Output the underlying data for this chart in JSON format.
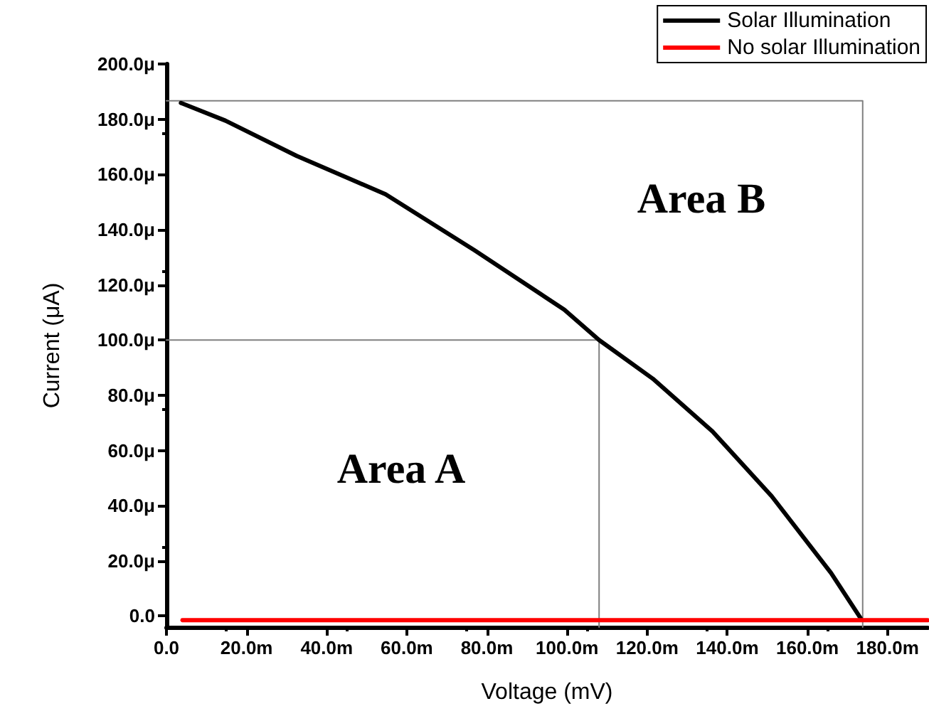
{
  "chart_data": {
    "type": "line",
    "xlabel": "Voltage (mV)",
    "ylabel": "Current (μA)",
    "xlim": [
      0,
      190
    ],
    "ylim": [
      -4,
      200
    ],
    "xticks": [
      {
        "value": 0,
        "label": "0.0"
      },
      {
        "value": 20,
        "label": "20.0m"
      },
      {
        "value": 40,
        "label": "40.0m"
      },
      {
        "value": 60,
        "label": "60.0m"
      },
      {
        "value": 80,
        "label": "80.0m"
      },
      {
        "value": 100,
        "label": "100.0m"
      },
      {
        "value": 120,
        "label": "120.0m"
      },
      {
        "value": 140,
        "label": "140.0m"
      },
      {
        "value": 160,
        "label": "160.0m"
      },
      {
        "value": 180,
        "label": "180.0m"
      }
    ],
    "yticks": [
      {
        "value": 0,
        "label": "0.0"
      },
      {
        "value": 20,
        "label": "20.0μ"
      },
      {
        "value": 40,
        "label": "40.0μ"
      },
      {
        "value": 60,
        "label": "60.0μ"
      },
      {
        "value": 80,
        "label": "80.0μ"
      },
      {
        "value": 100,
        "label": "100.0μ"
      },
      {
        "value": 120,
        "label": "120.0μ"
      },
      {
        "value": 140,
        "label": "140.0μ"
      },
      {
        "value": 160,
        "label": "160.0μ"
      },
      {
        "value": 180,
        "label": "180.0μ"
      },
      {
        "value": 200,
        "label": "200.0μ"
      }
    ],
    "series": [
      {
        "name": "Solar Illumination",
        "color": "#000000",
        "x": [
          3.6,
          14.7,
          32.5,
          54.7,
          76.9,
          99.3,
          108,
          121.4,
          136.3,
          151.1,
          165.9,
          173.3
        ],
        "values": [
          185.9,
          179.5,
          166.7,
          152.8,
          132.5,
          111,
          100,
          86,
          66.9,
          43.4,
          15.6,
          -0.8
        ]
      },
      {
        "name": "No solar Illumination",
        "color": "#ff0000",
        "x": [
          4,
          190
        ],
        "values": [
          -1.5,
          -1.5
        ]
      },
      {
        "color": "#808080",
        "x": [
          0,
          108,
          108
        ],
        "values": [
          100,
          100,
          -4
        ]
      },
      {
        "color": "#808080",
        "x": [
          0,
          173.8,
          173.8
        ],
        "values": [
          186.7,
          186.7,
          -4
        ]
      }
    ],
    "annotations": [
      "Area A",
      "Area B"
    ],
    "legend": "top right",
    "grid": false,
    "marker": "none",
    "line_style": "solid"
  }
}
